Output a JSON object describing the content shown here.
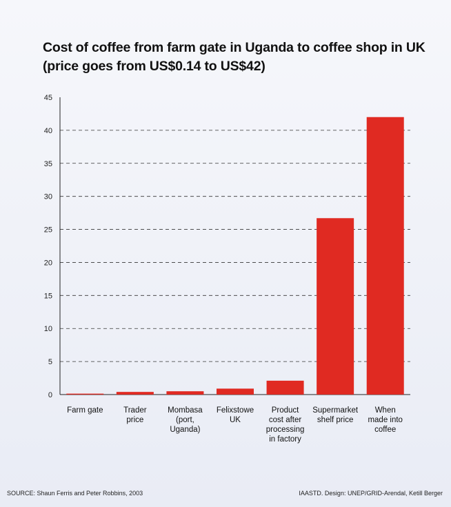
{
  "title_line1": "Cost of coffee from farm gate in Uganda to coffee shop in UK",
  "title_line2": "(price goes from US$0.14 to US$42)",
  "source": "SOURCE: Shaun Ferris and Peter Robbins, 2003",
  "credit": "IAASTD. Design: UNEP/GRID-Arendal, Ketill Berger",
  "colors": {
    "bar": "#e02a22",
    "grid": "#333333",
    "axis": "#222222",
    "background": "#eef0f7"
  },
  "chart_data": {
    "type": "bar",
    "title": "Cost of coffee from farm gate in Uganda to coffee shop in UK (price goes from US$0.14 to US$42)",
    "categories": [
      [
        "Farm gate"
      ],
      [
        "Trader",
        "price"
      ],
      [
        "Mombasa",
        "(port,",
        "Uganda)"
      ],
      [
        "Felixstowe",
        "UK"
      ],
      [
        "Product",
        "cost after",
        "processing",
        "in factory"
      ],
      [
        "Supermarket",
        "shelf price"
      ],
      [
        "When",
        "made into",
        "coffee"
      ]
    ],
    "values": [
      0.14,
      0.4,
      0.5,
      0.9,
      2.1,
      26.7,
      42
    ],
    "ylim": [
      0,
      45
    ],
    "yticks": [
      0,
      5,
      10,
      15,
      20,
      25,
      30,
      35,
      40,
      45
    ],
    "grid": "dashed horizontal",
    "xlabel": "",
    "ylabel": ""
  }
}
